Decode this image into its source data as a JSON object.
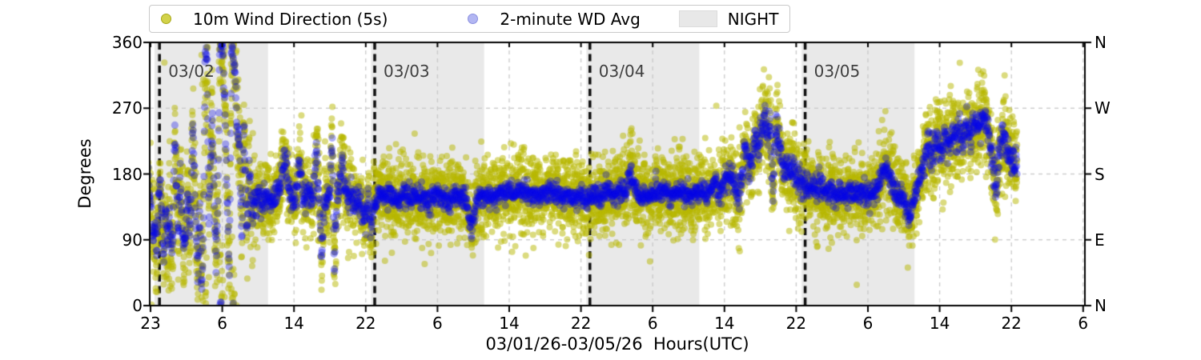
{
  "legend": {
    "items": [
      {
        "label": "10m Wind Direction (5s)",
        "marker": "dot",
        "color": "#bcbc00"
      },
      {
        "label": "2-minute WD Avg",
        "marker": "dot",
        "color": "#0000e6"
      },
      {
        "label": "NIGHT",
        "marker": "patch",
        "color": "#e8e8e8"
      }
    ]
  },
  "axes": {
    "ylabel": "Degrees",
    "xlabel": "03/01/26-03/05/26  Hours(UTC)",
    "y_ticks": [
      {
        "value": 0,
        "label": "0"
      },
      {
        "value": 90,
        "label": "90"
      },
      {
        "value": 180,
        "label": "180"
      },
      {
        "value": 270,
        "label": "270"
      },
      {
        "value": 360,
        "label": "360"
      }
    ],
    "right_compass_labels": [
      {
        "value": 0,
        "label": "N"
      },
      {
        "value": 90,
        "label": "E"
      },
      {
        "value": 180,
        "label": "S"
      },
      {
        "value": 270,
        "label": "W"
      },
      {
        "value": 360,
        "label": "N"
      }
    ],
    "x_ticks": [
      {
        "hour": 0,
        "label": "23"
      },
      {
        "hour": 8,
        "label": "6"
      },
      {
        "hour": 16,
        "label": "14"
      },
      {
        "hour": 24,
        "label": "22"
      },
      {
        "hour": 32,
        "label": "6"
      },
      {
        "hour": 40,
        "label": "14"
      },
      {
        "hour": 48,
        "label": "22"
      },
      {
        "hour": 56,
        "label": "6"
      },
      {
        "hour": 64,
        "label": "14"
      },
      {
        "hour": 72,
        "label": "22"
      },
      {
        "hour": 80,
        "label": "6"
      },
      {
        "hour": 88,
        "label": "14"
      },
      {
        "hour": 96,
        "label": "22"
      },
      {
        "hour": 104,
        "label": "6"
      }
    ]
  },
  "chart_data": {
    "type": "scatter",
    "title": "",
    "xlabel": "03/01/26-03/05/26  Hours(UTC)",
    "ylabel": "Degrees",
    "ylim": [
      0,
      360
    ],
    "x_hours_range": [
      -0.25,
      104.2
    ],
    "grid": true,
    "legend_position": "top",
    "series": [
      {
        "name": "10m Wind Direction (5s)",
        "color_rgba": [
          184,
          184,
          0,
          0.5
        ],
        "radius": 4.0,
        "step_hours": 0.014
      },
      {
        "name": "2-minute WD Avg",
        "color_rgba": [
          5,
          5,
          230,
          0.33
        ],
        "radius": 4.6,
        "step_hours": 0.0333
      }
    ],
    "night_bands_hours": [
      [
        0.45,
        13.1
      ],
      [
        24.6,
        37.2
      ],
      [
        48.6,
        61.2
      ],
      [
        72.6,
        85.2
      ]
    ],
    "date_lines": [
      {
        "hour": 1,
        "label": "03/02"
      },
      {
        "hour": 25,
        "label": "03/03"
      },
      {
        "hour": 49,
        "label": "03/04"
      },
      {
        "hour": 73,
        "label": "03/05"
      }
    ],
    "avg_control_points": [
      [
        -0.25,
        170
      ],
      [
        0,
        145
      ],
      [
        0.25,
        90
      ],
      [
        0.5,
        120
      ],
      [
        0.7,
        75
      ],
      [
        0.9,
        140
      ],
      [
        1.1,
        170
      ],
      [
        1.3,
        105
      ],
      [
        1.5,
        65
      ],
      [
        1.7,
        130
      ],
      [
        1.9,
        90
      ],
      [
        2.1,
        115
      ],
      [
        2.3,
        85
      ],
      [
        2.5,
        95
      ],
      [
        2.7,
        245
      ],
      [
        2.9,
        160
      ],
      [
        3.1,
        95
      ],
      [
        3.3,
        175
      ],
      [
        3.5,
        115
      ],
      [
        3.7,
        70
      ],
      [
        3.9,
        95
      ],
      [
        4.1,
        155
      ],
      [
        4.3,
        105
      ],
      [
        4.5,
        125
      ],
      [
        4.7,
        250
      ],
      [
        4.9,
        165
      ],
      [
        5.1,
        95
      ],
      [
        5.3,
        45
      ],
      [
        5.5,
        135
      ],
      [
        5.7,
        15
      ],
      [
        5.9,
        100
      ],
      [
        6.1,
        350
      ],
      [
        6.3,
        345
      ],
      [
        6.5,
        120
      ],
      [
        6.7,
        200
      ],
      [
        6.9,
        255
      ],
      [
        7.1,
        140
      ],
      [
        7.3,
        65
      ],
      [
        7.5,
        130
      ],
      [
        7.7,
        348
      ],
      [
        7.9,
        358
      ],
      [
        8.1,
        342
      ],
      [
        8.35,
        250
      ],
      [
        8.6,
        120
      ],
      [
        8.8,
        40
      ],
      [
        9.0,
        330
      ],
      [
        9.15,
        355
      ],
      [
        9.4,
        320
      ],
      [
        9.7,
        235
      ],
      [
        9.9,
        225
      ],
      [
        10.05,
        150
      ],
      [
        10.2,
        90
      ],
      [
        10.4,
        250
      ],
      [
        10.6,
        155
      ],
      [
        10.8,
        95
      ],
      [
        11.0,
        195
      ],
      [
        11.2,
        145
      ],
      [
        11.4,
        120
      ],
      [
        11.6,
        140
      ],
      [
        12,
        150
      ],
      [
        12.5,
        140
      ],
      [
        13,
        148
      ],
      [
        13.5,
        138
      ],
      [
        14,
        150
      ],
      [
        14.5,
        172
      ],
      [
        15,
        205
      ],
      [
        15.4,
        165
      ],
      [
        15.8,
        150
      ],
      [
        16.2,
        140
      ],
      [
        16.6,
        210
      ],
      [
        16.9,
        158
      ],
      [
        17.3,
        148
      ],
      [
        17.7,
        152
      ],
      [
        18.1,
        143
      ],
      [
        18.5,
        215
      ],
      [
        18.8,
        140
      ],
      [
        19.1,
        70
      ],
      [
        19.4,
        135
      ],
      [
        19.7,
        150
      ],
      [
        20.0,
        145
      ],
      [
        20.25,
        235
      ],
      [
        20.5,
        55
      ],
      [
        20.8,
        150
      ],
      [
        21.1,
        165
      ],
      [
        21.4,
        200
      ],
      [
        21.7,
        160
      ],
      [
        22.0,
        148
      ],
      [
        22.4,
        152
      ],
      [
        22.8,
        138
      ],
      [
        23.2,
        148
      ],
      [
        23.6,
        128
      ],
      [
        24.0,
        120
      ],
      [
        24.3,
        150
      ],
      [
        24.55,
        95
      ],
      [
        24.8,
        130
      ],
      [
        25,
        142
      ],
      [
        25.5,
        150
      ],
      [
        26,
        145
      ],
      [
        26.5,
        152
      ],
      [
        27,
        147
      ],
      [
        27.5,
        143
      ],
      [
        28,
        150
      ],
      [
        28.5,
        155
      ],
      [
        29,
        148
      ],
      [
        29.5,
        152
      ],
      [
        30,
        145
      ],
      [
        30.5,
        150
      ],
      [
        31,
        143
      ],
      [
        31.5,
        148
      ],
      [
        32,
        152
      ],
      [
        32.5,
        147
      ],
      [
        33,
        150
      ],
      [
        33.5,
        144
      ],
      [
        34,
        150
      ],
      [
        34.5,
        147
      ],
      [
        35,
        152
      ],
      [
        35.5,
        125
      ],
      [
        35.8,
        105
      ],
      [
        36.1,
        128
      ],
      [
        36.5,
        145
      ],
      [
        37,
        150
      ],
      [
        37.5,
        147
      ],
      [
        38,
        152
      ],
      [
        38.5,
        148
      ],
      [
        39,
        155
      ],
      [
        39.5,
        150
      ],
      [
        40,
        158
      ],
      [
        40.5,
        150
      ],
      [
        41,
        160
      ],
      [
        41.5,
        152
      ],
      [
        42,
        157
      ],
      [
        42.5,
        150
      ],
      [
        43,
        155
      ],
      [
        43.5,
        148
      ],
      [
        44,
        153
      ],
      [
        44.5,
        158
      ],
      [
        45,
        150
      ],
      [
        45.5,
        155
      ],
      [
        46,
        148
      ],
      [
        46.5,
        153
      ],
      [
        47,
        150
      ],
      [
        47.5,
        146
      ],
      [
        48,
        150
      ],
      [
        48.5,
        145
      ],
      [
        49,
        148
      ],
      [
        49.5,
        152
      ],
      [
        50,
        148
      ],
      [
        50.5,
        153
      ],
      [
        51,
        158
      ],
      [
        51.5,
        150
      ],
      [
        52,
        155
      ],
      [
        52.5,
        160
      ],
      [
        53,
        152
      ],
      [
        53.5,
        185
      ],
      [
        53.8,
        170
      ],
      [
        54.2,
        155
      ],
      [
        54.6,
        148
      ],
      [
        55,
        152
      ],
      [
        55.5,
        147
      ],
      [
        56,
        153
      ],
      [
        56.5,
        158
      ],
      [
        57,
        150
      ],
      [
        57.5,
        155
      ],
      [
        58,
        148
      ],
      [
        58.5,
        153
      ],
      [
        59,
        158
      ],
      [
        59.5,
        150
      ],
      [
        60,
        155
      ],
      [
        60.5,
        148
      ],
      [
        61,
        153
      ],
      [
        61.5,
        158
      ],
      [
        62,
        150
      ],
      [
        62.5,
        157
      ],
      [
        63,
        165
      ],
      [
        63.5,
        155
      ],
      [
        64,
        168
      ],
      [
        64.5,
        180
      ],
      [
        65,
        162
      ],
      [
        65.5,
        152
      ],
      [
        66,
        175
      ],
      [
        66.3,
        225
      ],
      [
        66.6,
        195
      ],
      [
        67,
        185
      ],
      [
        67.4,
        230
      ],
      [
        67.8,
        210
      ],
      [
        68.2,
        245
      ],
      [
        68.5,
        255
      ],
      [
        68.8,
        235
      ],
      [
        69.1,
        245
      ],
      [
        69.4,
        152
      ],
      [
        69.7,
        240
      ],
      [
        70,
        225
      ],
      [
        70.3,
        205
      ],
      [
        70.6,
        185
      ],
      [
        71,
        192
      ],
      [
        71.4,
        175
      ],
      [
        71.8,
        182
      ],
      [
        72.2,
        168
      ],
      [
        72.6,
        172
      ],
      [
        73,
        168
      ],
      [
        73.4,
        160
      ],
      [
        73.8,
        165
      ],
      [
        74.2,
        155
      ],
      [
        74.6,
        162
      ],
      [
        75,
        158
      ],
      [
        75.5,
        152
      ],
      [
        76,
        158
      ],
      [
        76.5,
        150
      ],
      [
        77,
        156
      ],
      [
        77.5,
        148
      ],
      [
        78,
        154
      ],
      [
        78.5,
        158
      ],
      [
        79,
        150
      ],
      [
        79.5,
        155
      ],
      [
        80,
        148
      ],
      [
        80.5,
        154
      ],
      [
        81,
        160
      ],
      [
        81.5,
        175
      ],
      [
        82,
        192
      ],
      [
        82.3,
        183
      ],
      [
        82.6,
        170
      ],
      [
        83,
        158
      ],
      [
        83.4,
        150
      ],
      [
        83.8,
        152
      ],
      [
        84.2,
        138
      ],
      [
        84.6,
        115
      ],
      [
        85,
        142
      ],
      [
        85.4,
        160
      ],
      [
        85.8,
        175
      ],
      [
        86.2,
        195
      ],
      [
        86.6,
        212
      ],
      [
        87,
        205
      ],
      [
        87.4,
        218
      ],
      [
        87.8,
        225
      ],
      [
        88.2,
        212
      ],
      [
        88.6,
        228
      ],
      [
        89,
        220
      ],
      [
        89.4,
        235
      ],
      [
        89.8,
        225
      ],
      [
        90.2,
        238
      ],
      [
        90.6,
        228
      ],
      [
        91,
        245
      ],
      [
        91.4,
        235
      ],
      [
        91.8,
        248
      ],
      [
        92.2,
        240
      ],
      [
        92.6,
        252
      ],
      [
        93,
        255
      ],
      [
        93.4,
        240
      ],
      [
        93.8,
        205
      ],
      [
        94.3,
        158
      ],
      [
        94.7,
        215
      ],
      [
        95.1,
        232
      ],
      [
        95.5,
        222
      ],
      [
        95.9,
        205
      ],
      [
        96.3,
        192
      ],
      [
        96.6,
        188
      ]
    ],
    "sigma_blue_zones": [
      [
        -0.3,
        11.6,
        9
      ],
      [
        11.6,
        25,
        10
      ],
      [
        25,
        48,
        7
      ],
      [
        48,
        63,
        7
      ],
      [
        63,
        73,
        11
      ],
      [
        73,
        85.5,
        8
      ],
      [
        85.5,
        96.7,
        11
      ]
    ],
    "sigma_yellow_zones": [
      [
        -0.3,
        11.6,
        40
      ],
      [
        11.6,
        18,
        26
      ],
      [
        18,
        22,
        31
      ],
      [
        22,
        25,
        27
      ],
      [
        25,
        48,
        26
      ],
      [
        48,
        63,
        26
      ],
      [
        63,
        73,
        30
      ],
      [
        73,
        85.5,
        26
      ],
      [
        85.5,
        96.7,
        29
      ]
    ]
  }
}
